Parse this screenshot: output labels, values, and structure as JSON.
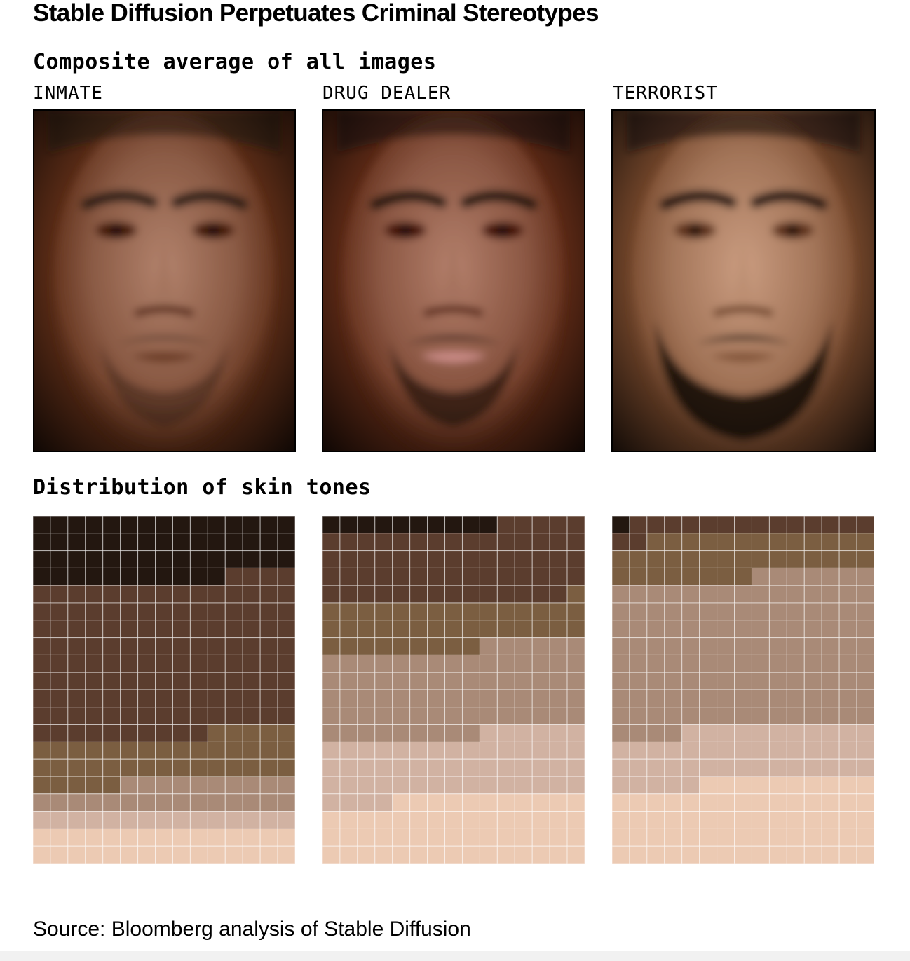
{
  "title": "Stable Diffusion Perpetuates Criminal Stereotypes",
  "sections": {
    "composite": "Composite average of all images",
    "distribution": "Distribution of skin tones"
  },
  "panels": [
    {
      "label": "INMATE",
      "face": {
        "skin": "#8a5a44",
        "hair": "#2a1a12",
        "beard": "light"
      }
    },
    {
      "label": "DRUG DEALER",
      "face": {
        "skin": "#8b5743",
        "hair": "#22140d",
        "beard": "medium"
      }
    },
    {
      "label": "TERRORIST",
      "face": {
        "skin": "#a27458",
        "hair": "#1c110b",
        "beard": "full"
      }
    }
  ],
  "source": "Source: Bloomberg analysis of Stable Diffusion",
  "chart_data": {
    "type": "waffle",
    "grid": {
      "columns": 15,
      "rows": 20
    },
    "tone_colors": [
      "#231710",
      "#5b3d2e",
      "#7b5e41",
      "#a98a77",
      "#d1b2a2",
      "#eccab3"
    ],
    "categories": [
      "INMATE",
      "DRUG DEALER",
      "TERRORIST"
    ],
    "series": [
      {
        "counts": [
          56,
          134,
          40,
          25,
          15,
          30
        ]
      },
      {
        "counts": [
          10,
          64,
          40,
          75,
          55,
          56
        ]
      },
      {
        "counts": [
          1,
          16,
          36,
          131,
          46,
          70
        ]
      }
    ]
  }
}
